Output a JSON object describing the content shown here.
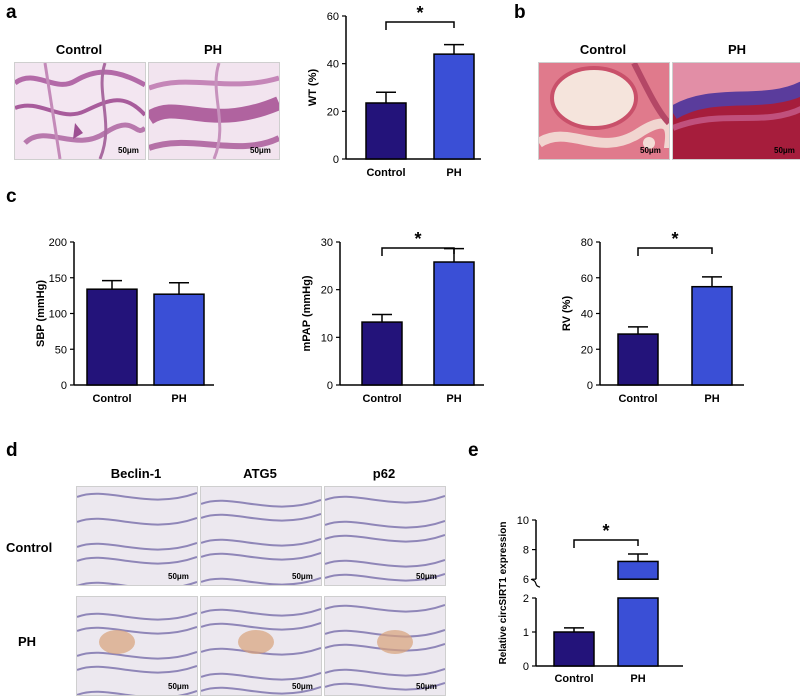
{
  "panels": {
    "a": {
      "letter": "a",
      "image_labels": [
        "Control",
        "PH"
      ],
      "scale_bar": "50μm"
    },
    "b": {
      "letter": "b",
      "image_labels": [
        "Control",
        "PH"
      ],
      "scale_bar": "50μm"
    },
    "c": {
      "letter": "c"
    },
    "d": {
      "letter": "d",
      "column_labels": [
        "Beclin-1",
        "ATG5",
        "p62"
      ],
      "row_labels": [
        "Control",
        "PH"
      ],
      "scale_bar": "50μm"
    },
    "e": {
      "letter": "e"
    }
  },
  "significance_mark": "*",
  "colors": {
    "control": "#23137a",
    "ph": "#3a4fd6",
    "axis": "#000000"
  },
  "chart_data": [
    {
      "id": "wt",
      "type": "bar",
      "categories": [
        "Control",
        "PH"
      ],
      "values": [
        23.5,
        44
      ],
      "errors": [
        4.5,
        4
      ],
      "ylabel": "WT (%)",
      "ylim": [
        0,
        60
      ],
      "yticks": [
        0,
        20,
        40,
        60
      ],
      "significant": true
    },
    {
      "id": "sbp",
      "type": "bar",
      "categories": [
        "Control",
        "PH"
      ],
      "values": [
        134,
        127
      ],
      "errors": [
        12,
        16
      ],
      "ylabel": "SBP (mmHg)",
      "ylim": [
        0,
        200
      ],
      "yticks": [
        0,
        50,
        100,
        150,
        200
      ],
      "significant": false
    },
    {
      "id": "mpap",
      "type": "bar",
      "categories": [
        "Control",
        "PH"
      ],
      "values": [
        13.2,
        25.8
      ],
      "errors": [
        1.6,
        2.8
      ],
      "ylabel": "mPAP (mmHg)",
      "ylim": [
        0,
        30
      ],
      "yticks": [
        0,
        10,
        20,
        30
      ],
      "significant": true
    },
    {
      "id": "rv",
      "type": "bar",
      "categories": [
        "Control",
        "PH"
      ],
      "values": [
        28.5,
        55
      ],
      "errors": [
        4,
        5.5
      ],
      "ylabel": "RV (%)",
      "ylim": [
        0,
        80
      ],
      "yticks": [
        0,
        20,
        40,
        60,
        80
      ],
      "significant": true
    },
    {
      "id": "circsirt1",
      "type": "bar",
      "categories": [
        "Control",
        "PH"
      ],
      "values": [
        1.0,
        7.2
      ],
      "errors": [
        0.12,
        0.5
      ],
      "ylabel": "Relative circSIRT1 expression",
      "y_axis_break": [
        2,
        5
      ],
      "lower_ticks": [
        0,
        1,
        2
      ],
      "upper_ticks": [
        6,
        8,
        10
      ],
      "significant": true
    }
  ]
}
